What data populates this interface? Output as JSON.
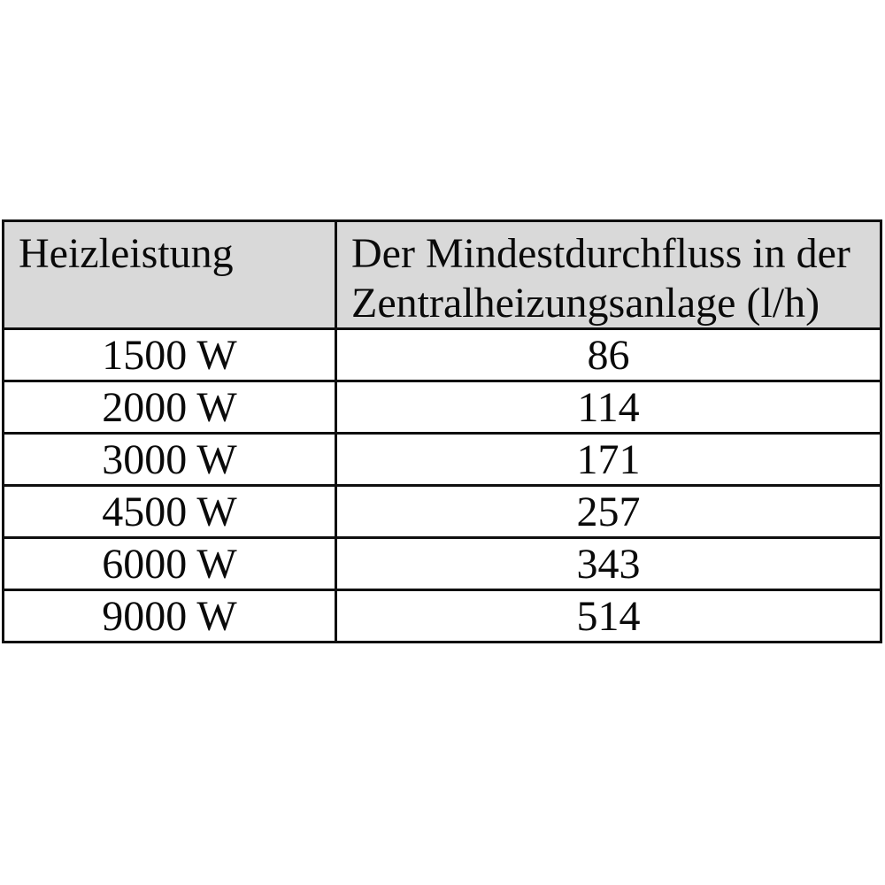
{
  "table": {
    "header": {
      "col1": "Heizleistung",
      "col2_line1": "Der Mindestdurchfluss in der",
      "col2_line2": "Zentralheizungsanlage (l/h)"
    },
    "rows": [
      {
        "heizleistung": "1500 W",
        "mindestdurchfluss": "86"
      },
      {
        "heizleistung": "2000 W",
        "mindestdurchfluss": "114"
      },
      {
        "heizleistung": "3000 W",
        "mindestdurchfluss": "171"
      },
      {
        "heizleistung": "4500 W",
        "mindestdurchfluss": "257"
      },
      {
        "heizleistung": "6000 W",
        "mindestdurchfluss": "343"
      },
      {
        "heizleistung": "9000 W",
        "mindestdurchfluss": "514"
      }
    ],
    "colors": {
      "header_bg": "#d9d9d9",
      "border": "#0f0f0f",
      "text": "#0a0a0a",
      "page_bg": "#ffffff"
    }
  }
}
